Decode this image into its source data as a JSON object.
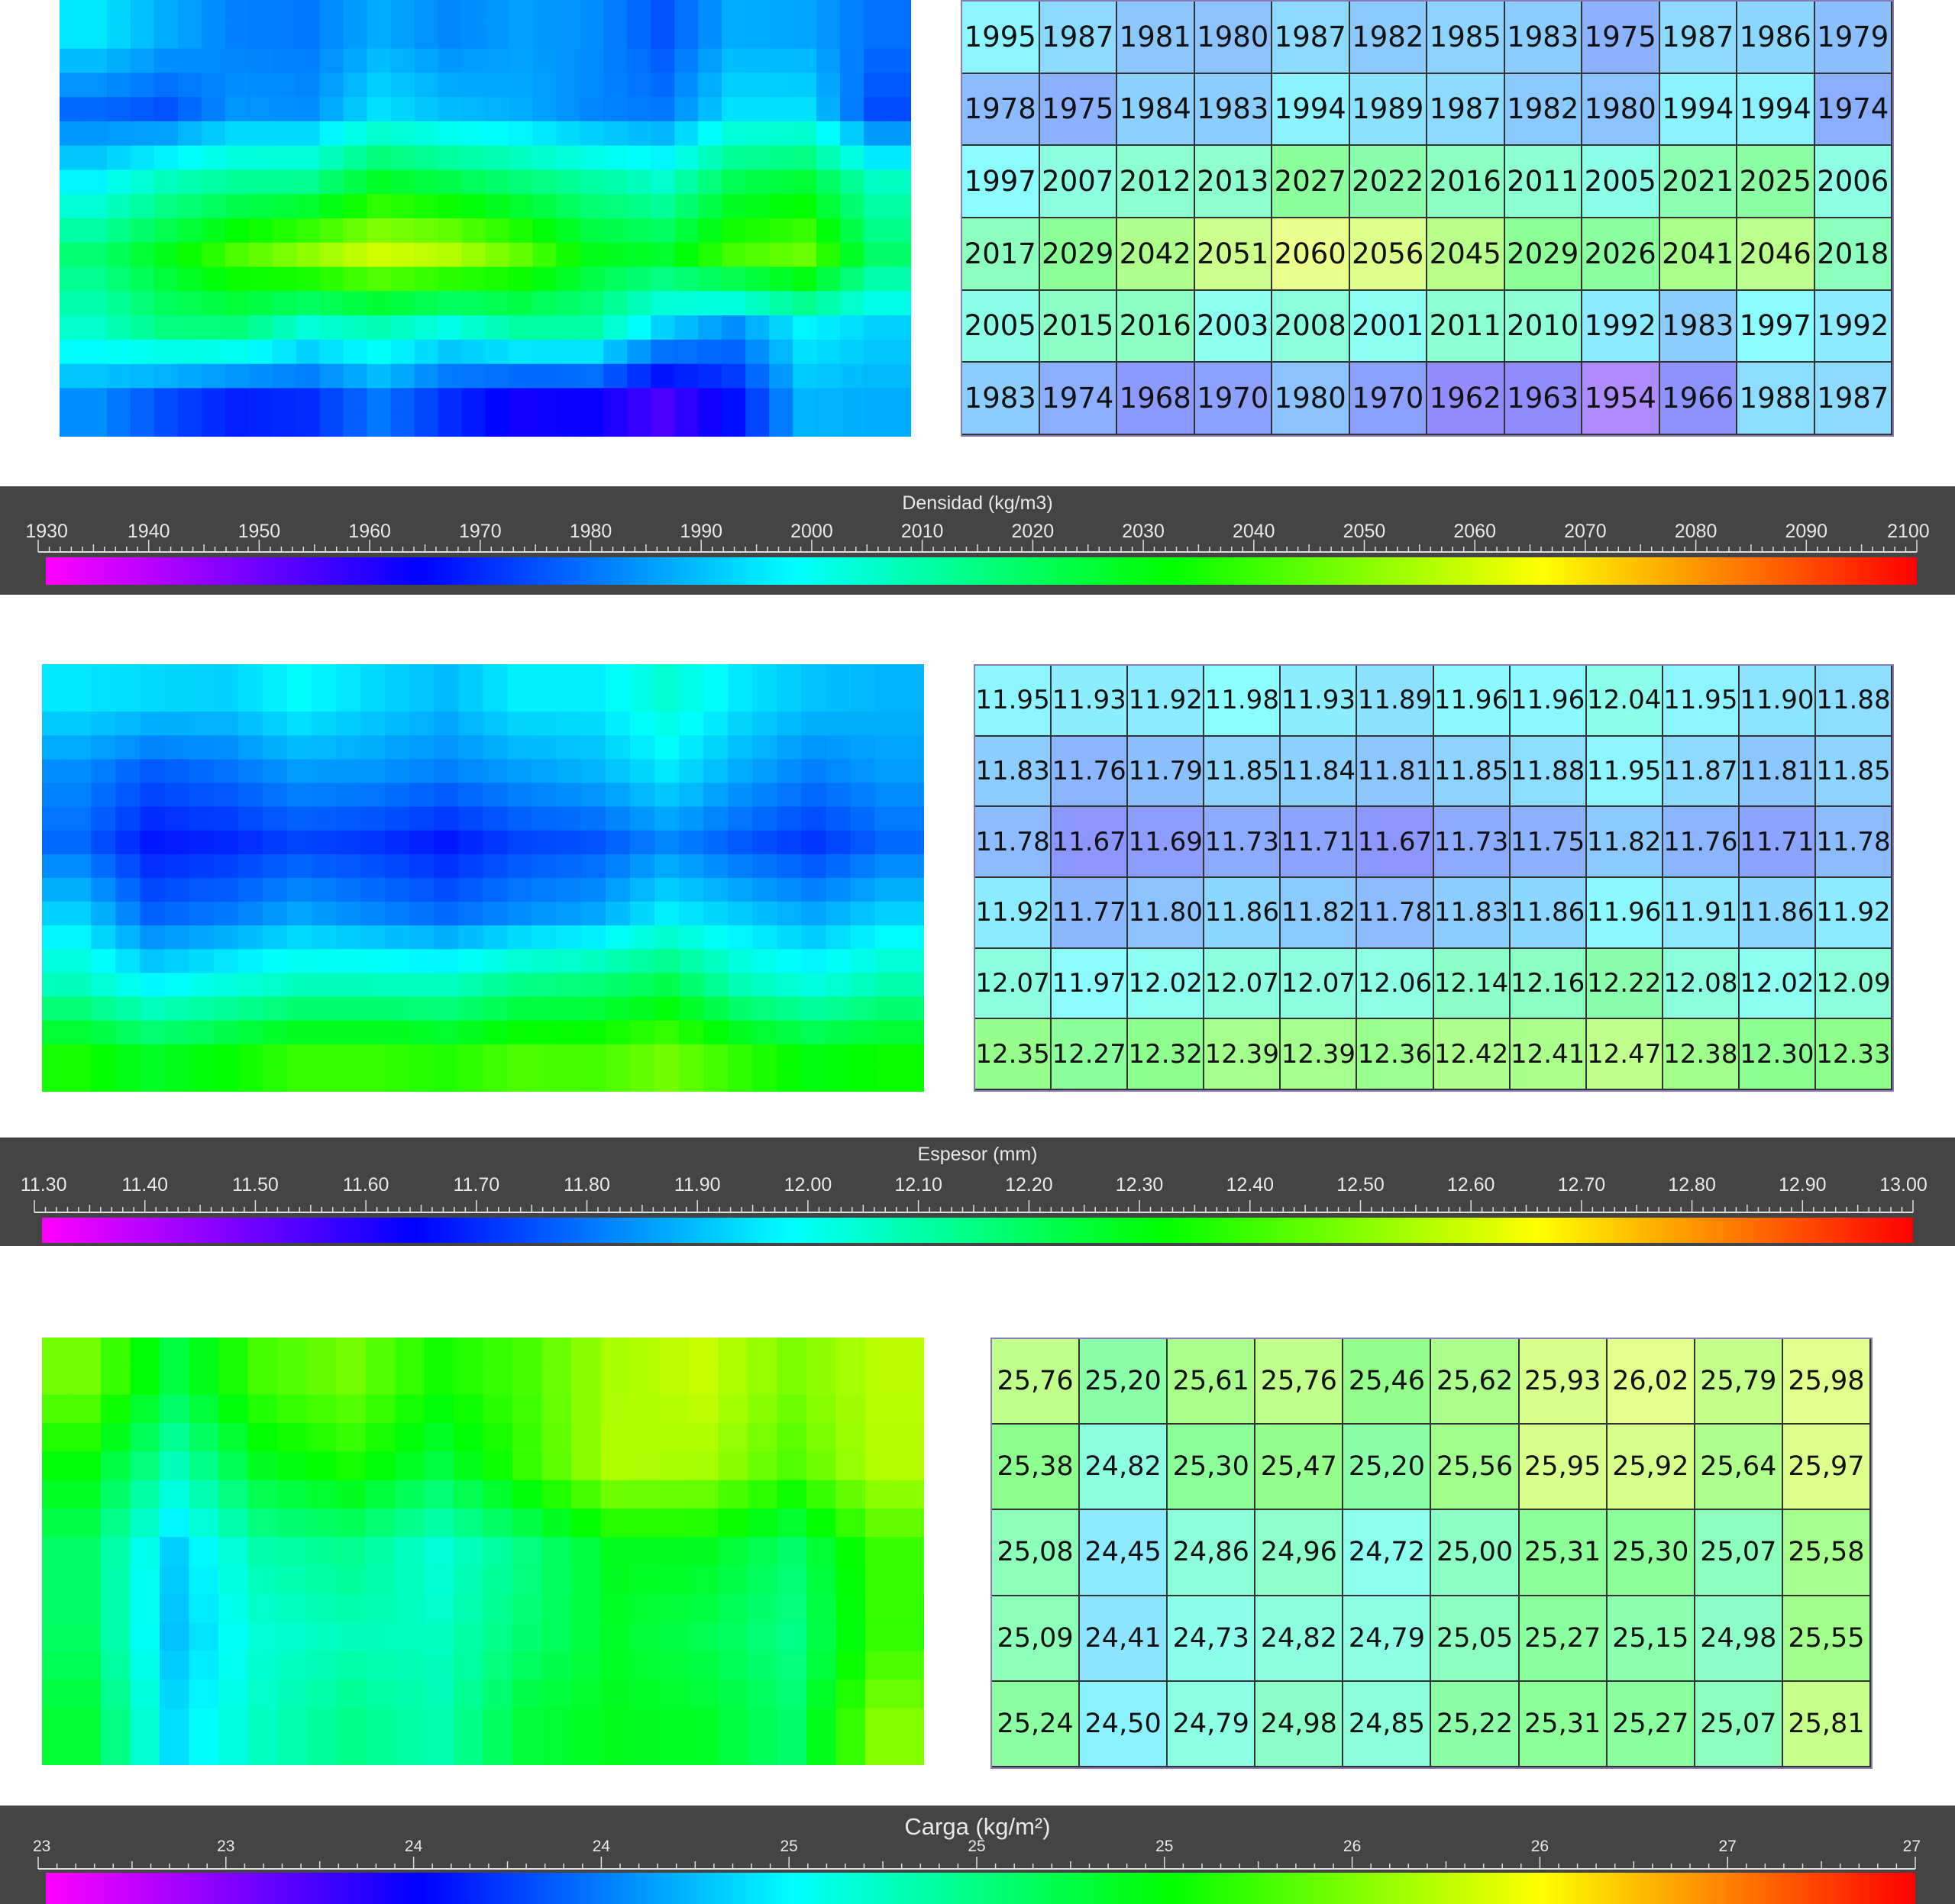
{
  "colors": {
    "scale": [
      "#ff00ff",
      "#0000ff",
      "#00ffff",
      "#00ff00",
      "#ffff00",
      "#ff0000"
    ],
    "bar_background": "#444444"
  },
  "chart_data": [
    {
      "type": "heatmap",
      "title": "Densidad (kg/m3)",
      "colorbar_range": [
        1930,
        2100
      ],
      "colorbar_ticks": [
        "1930",
        "1940",
        "1950",
        "1960",
        "1970",
        "1980",
        "1990",
        "2000",
        "2010",
        "2020",
        "2030",
        "2040",
        "2050",
        "2060",
        "2070",
        "2080",
        "2090",
        "2100"
      ],
      "rows": 6,
      "cols": 12,
      "table": [
        [
          "1995",
          "1987",
          "1981",
          "1980",
          "1987",
          "1982",
          "1985",
          "1983",
          "1975",
          "1987",
          "1986",
          "1979"
        ],
        [
          "1978",
          "1975",
          "1984",
          "1983",
          "1994",
          "1989",
          "1987",
          "1982",
          "1980",
          "1994",
          "1994",
          "1974"
        ],
        [
          "1997",
          "2007",
          "2012",
          "2013",
          "2027",
          "2022",
          "2016",
          "2011",
          "2005",
          "2021",
          "2025",
          "2006"
        ],
        [
          "2017",
          "2029",
          "2042",
          "2051",
          "2060",
          "2056",
          "2045",
          "2029",
          "2026",
          "2041",
          "2046",
          "2018"
        ],
        [
          "2005",
          "2015",
          "2016",
          "2003",
          "2008",
          "2001",
          "2011",
          "2010",
          "1992",
          "1983",
          "1997",
          "1992"
        ],
        [
          "1983",
          "1974",
          "1968",
          "1970",
          "1980",
          "1970",
          "1962",
          "1963",
          "1954",
          "1966",
          "1988",
          "1987"
        ]
      ]
    },
    {
      "type": "heatmap",
      "title": "Espesor (mm)",
      "colorbar_range": [
        11.3,
        13.0
      ],
      "colorbar_ticks": [
        "11.30",
        "11.40",
        "11.50",
        "11.60",
        "11.70",
        "11.80",
        "11.90",
        "12.00",
        "12.10",
        "12.20",
        "12.30",
        "12.40",
        "12.50",
        "12.60",
        "12.70",
        "12.80",
        "12.90",
        "13.00"
      ],
      "rows": 6,
      "cols": 12,
      "table": [
        [
          "11.95",
          "11.93",
          "11.92",
          "11.98",
          "11.93",
          "11.89",
          "11.96",
          "11.96",
          "12.04",
          "11.95",
          "11.90",
          "11.88"
        ],
        [
          "11.83",
          "11.76",
          "11.79",
          "11.85",
          "11.84",
          "11.81",
          "11.85",
          "11.88",
          "11.95",
          "11.87",
          "11.81",
          "11.85"
        ],
        [
          "11.78",
          "11.67",
          "11.69",
          "11.73",
          "11.71",
          "11.67",
          "11.73",
          "11.75",
          "11.82",
          "11.76",
          "11.71",
          "11.78"
        ],
        [
          "11.92",
          "11.77",
          "11.80",
          "11.86",
          "11.82",
          "11.78",
          "11.83",
          "11.86",
          "11.96",
          "11.91",
          "11.86",
          "11.92"
        ],
        [
          "12.07",
          "11.97",
          "12.02",
          "12.07",
          "12.07",
          "12.06",
          "12.14",
          "12.16",
          "12.22",
          "12.08",
          "12.02",
          "12.09"
        ],
        [
          "12.35",
          "12.27",
          "12.32",
          "12.39",
          "12.39",
          "12.36",
          "12.42",
          "12.41",
          "12.47",
          "12.38",
          "12.30",
          "12.33"
        ]
      ]
    },
    {
      "type": "heatmap",
      "title": "Carga (kg/m²)",
      "colorbar_range": [
        23,
        27
      ],
      "colorbar_ticks": [
        "23",
        "23",
        "24",
        "24",
        "25",
        "25",
        "25",
        "26",
        "26",
        "27",
        "27"
      ],
      "rows": 5,
      "cols": 10,
      "table": [
        [
          "25,76",
          "25,20",
          "25,61",
          "25,76",
          "25,46",
          "25,62",
          "25,93",
          "26,02",
          "25,79",
          "25,98"
        ],
        [
          "25,38",
          "24,82",
          "25,30",
          "25,47",
          "25,20",
          "25,56",
          "25,95",
          "25,92",
          "25,64",
          "25,97"
        ],
        [
          "25,08",
          "24,45",
          "24,86",
          "24,96",
          "24,72",
          "25,00",
          "25,31",
          "25,30",
          "25,07",
          "25,58"
        ],
        [
          "25,09",
          "24,41",
          "24,73",
          "24,82",
          "24,79",
          "25,05",
          "25,27",
          "25,15",
          "24,98",
          "25,55"
        ],
        [
          "25,24",
          "24,50",
          "24,79",
          "24,98",
          "24,85",
          "25,22",
          "25,31",
          "25,27",
          "25,07",
          "25,81"
        ]
      ]
    }
  ]
}
